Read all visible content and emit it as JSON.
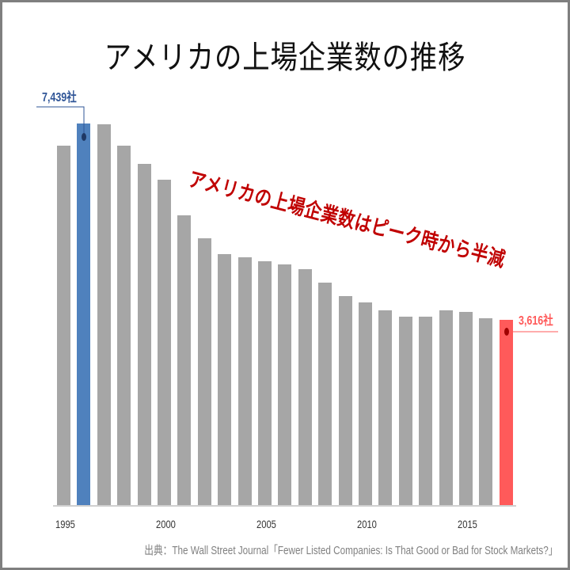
{
  "title": "アメリカの上場企業数の推移",
  "annotation": "アメリカの上場企業数はピーク時から半減",
  "source": "出典：The Wall Street Journal「Fewer Listed Companies: Is That Good or Bad for Stock Markets?」",
  "callouts": {
    "peak": {
      "label": "7,439社",
      "year": 1996,
      "color": "#4f81bd",
      "label_color": "#2f5597"
    },
    "latest": {
      "label": "3,616社",
      "year": 2017,
      "color": "#ff5a5a",
      "label_color": "#ff5a5a"
    }
  },
  "colors": {
    "bar": "#a6a6a6",
    "peak": "#4f81bd",
    "latest": "#ff5a5a",
    "annotation": "#c00000"
  },
  "x_ticks": [
    "1995",
    "2000",
    "2005",
    "2010",
    "2015"
  ],
  "chart_data": {
    "type": "bar",
    "title": "アメリカの上場企業数の推移",
    "xlabel": "",
    "ylabel": "",
    "categories": [
      "1995",
      "1996",
      "1997",
      "1998",
      "1999",
      "2000",
      "2001",
      "2002",
      "2003",
      "2004",
      "2005",
      "2006",
      "2007",
      "2008",
      "2009",
      "2010",
      "2011",
      "2012",
      "2013",
      "2014",
      "2015",
      "2016",
      "2017"
    ],
    "values": [
      7000,
      7439,
      7430,
      7000,
      6650,
      6350,
      5650,
      5200,
      4900,
      4830,
      4750,
      4690,
      4600,
      4330,
      4070,
      3950,
      3790,
      3670,
      3670,
      3790,
      3760,
      3640,
      3616
    ],
    "highlighted": {
      "1996": "7,439社",
      "2017": "3,616社"
    },
    "x_tick_labels": [
      "1995",
      "2000",
      "2005",
      "2010",
      "2015"
    ],
    "ylim": [
      0,
      7800
    ],
    "grid": false,
    "legend": "none",
    "annotations": [
      "アメリカの上場企業数はピーク時から半減",
      "7,439社",
      "3,616社"
    ]
  }
}
